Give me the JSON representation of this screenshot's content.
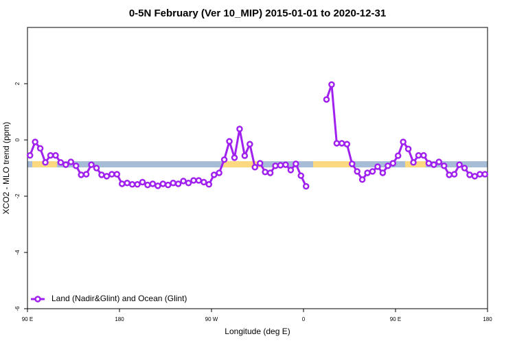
{
  "chart_data": {
    "type": "line",
    "title": "0-5N February (Ver 10_MIP)   2015-01-01 to 2020-12-31",
    "xlabel": "Longitude (deg E)",
    "ylabel": "XCO2 - MLO trend (ppm)",
    "x": [
      92.5,
      97.5,
      102.5,
      107.5,
      112.5,
      117.5,
      122.5,
      127.5,
      132.5,
      137.5,
      142.5,
      147.5,
      152.5,
      157.5,
      162.5,
      167.5,
      172.5,
      177.5,
      182.5,
      187.5,
      192.5,
      197.5,
      202.5,
      207.5,
      212.5,
      217.5,
      222.5,
      227.5,
      232.5,
      237.5,
      242.5,
      247.5,
      252.5,
      257.5,
      262.5,
      267.5,
      272.5,
      277.5,
      282.5,
      287.5,
      292.5,
      297.5,
      302.5,
      307.5,
      312.5,
      317.5,
      322.5,
      327.5,
      332.5,
      337.5,
      342.5,
      347.5,
      352.5,
      357.5,
      362.5,
      367.5,
      372.5,
      377.5,
      382.5,
      387.5,
      392.5,
      397.5,
      402.5,
      407.5,
      412.5,
      417.5,
      422.5,
      427.5,
      432.5,
      437.5,
      442.5,
      447.5,
      452.5,
      457.5,
      462.5,
      467.5,
      472.5,
      477.5,
      482.5,
      487.5,
      492.5,
      497.5,
      502.5,
      507.5,
      512.5,
      517.5,
      522.5,
      527.5,
      532.5,
      537.5
    ],
    "series": [
      {
        "name": "Land (Nadir&Glint) and Ocean (Glint)",
        "color": "#a020f0",
        "values": [
          -0.55,
          -0.07,
          -0.3,
          -0.8,
          -0.55,
          -0.55,
          -0.8,
          -0.88,
          -0.78,
          -0.92,
          -1.24,
          -1.22,
          -0.88,
          -1.0,
          -1.24,
          -1.29,
          -1.22,
          -1.22,
          -1.56,
          -1.53,
          -1.58,
          -1.58,
          -1.5,
          -1.6,
          -1.56,
          -1.63,
          -1.56,
          -1.6,
          -1.53,
          -1.56,
          -1.46,
          -1.53,
          -1.44,
          -1.44,
          -1.5,
          -1.58,
          -1.24,
          -1.17,
          -0.7,
          -0.05,
          -0.63,
          0.39,
          -0.56,
          -0.15,
          -0.97,
          -0.83,
          -1.14,
          -1.17,
          -0.92,
          -0.9,
          -0.88,
          -1.07,
          -0.85,
          -1.27,
          -1.65,
          null,
          null,
          null,
          1.44,
          1.97,
          -0.12,
          -0.12,
          -0.15,
          -0.85,
          -1.12,
          -1.41,
          -1.17,
          -1.12,
          -0.95,
          -1.17,
          -0.92,
          -0.83,
          -0.56,
          -0.07,
          -0.32,
          -0.8,
          -0.55,
          -0.55,
          -0.83,
          -0.88,
          -0.78,
          -0.92,
          -1.24,
          -1.22,
          -0.88,
          -1.0,
          -1.24,
          -1.29,
          -1.22,
          -1.22
        ]
      }
    ],
    "xlim": [
      90,
      540
    ],
    "xticks": [
      {
        "value": 90,
        "label": "90 E"
      },
      180,
      {
        "value": 270,
        "label": "90 W"
      },
      {
        "value": 360,
        "label": "0"
      },
      {
        "value": 450,
        "label": "90 E"
      },
      {
        "value": 540,
        "label": "180"
      }
    ],
    "ylim": [
      -6,
      4
    ],
    "yticks": [
      -6,
      -4,
      -2,
      0,
      2
    ],
    "legend": "bottom-left"
  }
}
